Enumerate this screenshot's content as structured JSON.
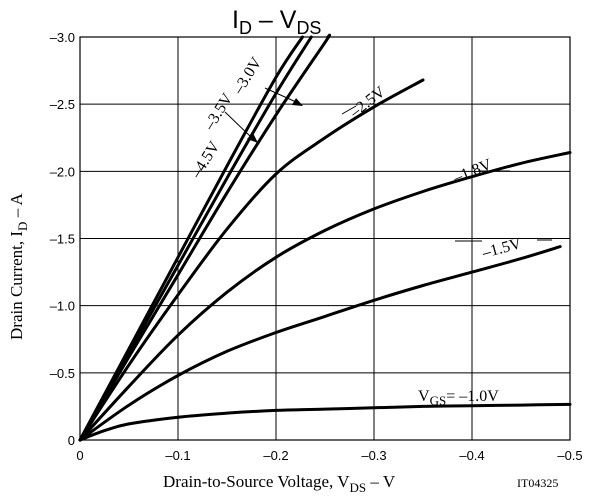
{
  "chart_data": {
    "type": "line",
    "title": {
      "main": "I",
      "sub1": "D",
      "mid": " – V",
      "sub2": "DS"
    },
    "xlabel": {
      "main": "Drain-to-Source Voltage, V",
      "sub": "DS",
      "tail": "  –  V"
    },
    "ylabel": {
      "main": "Drain Current, I",
      "sub": "D",
      "tail": "  –  A"
    },
    "figure_code": "IT04325",
    "xlim": [
      0,
      -0.5
    ],
    "ylim": [
      0,
      -3.0
    ],
    "x_ticks": [
      {
        "v": 0,
        "label": "0"
      },
      {
        "v": -0.1,
        "label": "–0.1"
      },
      {
        "v": -0.2,
        "label": "–0.2"
      },
      {
        "v": -0.3,
        "label": "–0.3"
      },
      {
        "v": -0.4,
        "label": "–0.4"
      },
      {
        "v": -0.5,
        "label": "–0.5"
      }
    ],
    "y_ticks": [
      {
        "v": 0,
        "label": "0"
      },
      {
        "v": -0.5,
        "label": "–0.5"
      },
      {
        "v": -1.0,
        "label": "–1.0"
      },
      {
        "v": -1.5,
        "label": "–1.5"
      },
      {
        "v": -2.0,
        "label": "–2.0"
      },
      {
        "v": -2.5,
        "label": "–2.5"
      },
      {
        "v": -3.0,
        "label": "–3.0"
      }
    ],
    "grid": true,
    "series": [
      {
        "name": "–4.5V",
        "points": [
          [
            0,
            0
          ],
          [
            -0.05,
            -0.68
          ],
          [
            -0.1,
            -1.36
          ],
          [
            -0.15,
            -2.04
          ],
          [
            -0.2,
            -2.7
          ],
          [
            -0.227,
            -3.0
          ]
        ]
      },
      {
        "name": "–3.5V",
        "points": [
          [
            0,
            0
          ],
          [
            -0.05,
            -0.65
          ],
          [
            -0.1,
            -1.3
          ],
          [
            -0.15,
            -1.95
          ],
          [
            -0.2,
            -2.58
          ],
          [
            -0.236,
            -3.0
          ]
        ]
      },
      {
        "name": "–3.0V",
        "points": [
          [
            0,
            0
          ],
          [
            -0.05,
            -0.62
          ],
          [
            -0.1,
            -1.23
          ],
          [
            -0.15,
            -1.84
          ],
          [
            -0.2,
            -2.42
          ],
          [
            -0.25,
            -2.96
          ],
          [
            -0.253,
            -3.0
          ]
        ]
      },
      {
        "name": "–2.5V",
        "points": [
          [
            0,
            0
          ],
          [
            -0.05,
            -0.56
          ],
          [
            -0.1,
            -1.08
          ],
          [
            -0.15,
            -1.57
          ],
          [
            -0.2,
            -1.98
          ],
          [
            -0.25,
            -2.25
          ],
          [
            -0.3,
            -2.48
          ],
          [
            -0.35,
            -2.68
          ]
        ]
      },
      {
        "name": "–1.8V",
        "points": [
          [
            0,
            0
          ],
          [
            -0.05,
            -0.4
          ],
          [
            -0.1,
            -0.78
          ],
          [
            -0.15,
            -1.1
          ],
          [
            -0.2,
            -1.36
          ],
          [
            -0.25,
            -1.56
          ],
          [
            -0.3,
            -1.72
          ],
          [
            -0.35,
            -1.85
          ],
          [
            -0.4,
            -1.96
          ],
          [
            -0.45,
            -2.06
          ],
          [
            -0.5,
            -2.14
          ]
        ]
      },
      {
        "name": "–1.5V",
        "points": [
          [
            0,
            0
          ],
          [
            -0.05,
            -0.26
          ],
          [
            -0.1,
            -0.48
          ],
          [
            -0.15,
            -0.66
          ],
          [
            -0.2,
            -0.8
          ],
          [
            -0.25,
            -0.92
          ],
          [
            -0.3,
            -1.04
          ],
          [
            -0.35,
            -1.15
          ],
          [
            -0.4,
            -1.25
          ],
          [
            -0.45,
            -1.35
          ],
          [
            -0.49,
            -1.44
          ]
        ]
      },
      {
        "name": "VGS= –1.0V",
        "points": [
          [
            0,
            0
          ],
          [
            -0.025,
            -0.07
          ],
          [
            -0.05,
            -0.12
          ],
          [
            -0.1,
            -0.17
          ],
          [
            -0.15,
            -0.2
          ],
          [
            -0.2,
            -0.22
          ],
          [
            -0.25,
            -0.23
          ],
          [
            -0.3,
            -0.24
          ],
          [
            -0.35,
            -0.25
          ],
          [
            -0.4,
            -0.255
          ],
          [
            -0.45,
            -0.26
          ],
          [
            -0.5,
            -0.265
          ]
        ]
      }
    ],
    "labels": {
      "l45": "–4.5V",
      "l35": "–3.5V",
      "l30": "–3.0V",
      "l25": "–2.5V",
      "l18": "–1.8V",
      "l15": "–1.5V",
      "l10": {
        "main": "V",
        "sub": "GS",
        "tail": "= –1.0V"
      }
    }
  }
}
